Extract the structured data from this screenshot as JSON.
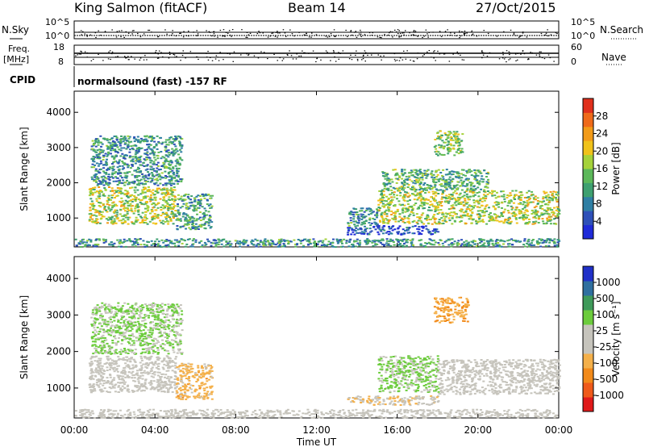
{
  "header": {
    "station": "King Salmon (fitACF)",
    "beam": "Beam 14",
    "date": "27/Oct/2015"
  },
  "status_panels": {
    "nsky_label": "N.Sky",
    "nsky_ticks": [
      "10^5",
      "10^0"
    ],
    "nsearch_label": "N.Search",
    "nsearch_ticks": [
      "10^5",
      "10^0"
    ],
    "freq_label_1": "Freq.",
    "freq_label_2": "[MHz]",
    "freq_ticks": [
      "18",
      "8"
    ],
    "nave_label": "Nave",
    "nave_ticks": [
      "60",
      "0"
    ],
    "cpid_label": "CPID",
    "cpid_text": "normalsound (fast) -157 RF"
  },
  "chart_data": [
    {
      "type": "heatmap",
      "title": "",
      "xlabel": "Time UT",
      "ylabel": "Slant Range [km]",
      "x_ticks": [
        "00:00",
        "04:00",
        "08:00",
        "12:00",
        "16:00",
        "20:00",
        "00:00"
      ],
      "x_range_hours": [
        0,
        24
      ],
      "y_ticks": [
        1000,
        2000,
        3000,
        4000
      ],
      "ylim": [
        180,
        4600
      ],
      "colorbar": {
        "label": "Power [dB]",
        "ticks": [
          "4",
          "8",
          "12",
          "16",
          "20",
          "24",
          "28"
        ],
        "range": [
          0,
          30
        ],
        "colors": [
          "#1f2bd8",
          "#2e50b8",
          "#2f7fa4",
          "#3ea070",
          "#5cb85a",
          "#a5d23a",
          "#f0c21a",
          "#f29b19",
          "#ef6a1a",
          "#e0301c"
        ]
      },
      "patches": [
        {
          "t": [
            0.7,
            5.0
          ],
          "r": [
            850,
            1900
          ],
          "level": 0.55
        },
        {
          "t": [
            0.8,
            5.3
          ],
          "r": [
            1950,
            3350
          ],
          "level": 0.3
        },
        {
          "t": [
            5.0,
            6.8
          ],
          "r": [
            700,
            1700
          ],
          "level": 0.35
        },
        {
          "t": [
            13.5,
            15.0
          ],
          "r": [
            800,
            1300
          ],
          "level": 0.3
        },
        {
          "t": [
            15.0,
            24.0
          ],
          "r": [
            850,
            1800
          ],
          "level": 0.55
        },
        {
          "t": [
            15.2,
            20.5
          ],
          "r": [
            1800,
            2400
          ],
          "level": 0.4
        },
        {
          "t": [
            17.8,
            19.2
          ],
          "r": [
            2800,
            3500
          ],
          "level": 0.5
        },
        {
          "t": [
            13.5,
            18.0
          ],
          "r": [
            550,
            800
          ],
          "level": 0.1
        },
        {
          "t": [
            0.0,
            24.0
          ],
          "r": [
            200,
            430
          ],
          "level": 0.3
        }
      ]
    },
    {
      "type": "heatmap",
      "title": "",
      "xlabel": "Time UT",
      "ylabel": "Slant Range [km]",
      "x_ticks": [
        "00:00",
        "04:00",
        "08:00",
        "12:00",
        "16:00",
        "20:00",
        "00:00"
      ],
      "x_range_hours": [
        0,
        24
      ],
      "y_ticks": [
        1000,
        2000,
        3000,
        4000
      ],
      "ylim": [
        180,
        4600
      ],
      "colorbar": {
        "label": "Velocity [m s⁻¹]",
        "ticks": [
          "1000",
          "500",
          "100",
          "25",
          "-25",
          "-100",
          "-500",
          "-1000"
        ],
        "range": [
          -1000,
          1000
        ],
        "colors": [
          "#e01a1a",
          "#ef5a1a",
          "#f28a1a",
          "#f4b04a",
          "#c6c4bc",
          "#c6c4bc",
          "#6ccc3c",
          "#3f9a5a",
          "#2f6f9f",
          "#2030c8"
        ]
      },
      "patches": [
        {
          "t": [
            0.7,
            5.0
          ],
          "r": [
            900,
            1900
          ],
          "velocity": 0
        },
        {
          "t": [
            0.8,
            5.3
          ],
          "r": [
            1950,
            3350
          ],
          "velocity": 250
        },
        {
          "t": [
            5.0,
            6.8
          ],
          "r": [
            700,
            1700
          ],
          "velocity": -300
        },
        {
          "t": [
            15.0,
            18.0
          ],
          "r": [
            900,
            1900
          ],
          "velocity": 250
        },
        {
          "t": [
            18.0,
            24.0
          ],
          "r": [
            850,
            1800
          ],
          "velocity": 0
        },
        {
          "t": [
            17.8,
            19.5
          ],
          "r": [
            2800,
            3500
          ],
          "velocity": -400
        },
        {
          "t": [
            13.5,
            18.0
          ],
          "r": [
            550,
            800
          ],
          "velocity": -200
        },
        {
          "t": [
            0.0,
            24.0
          ],
          "r": [
            200,
            430
          ],
          "velocity": 0
        }
      ]
    }
  ]
}
